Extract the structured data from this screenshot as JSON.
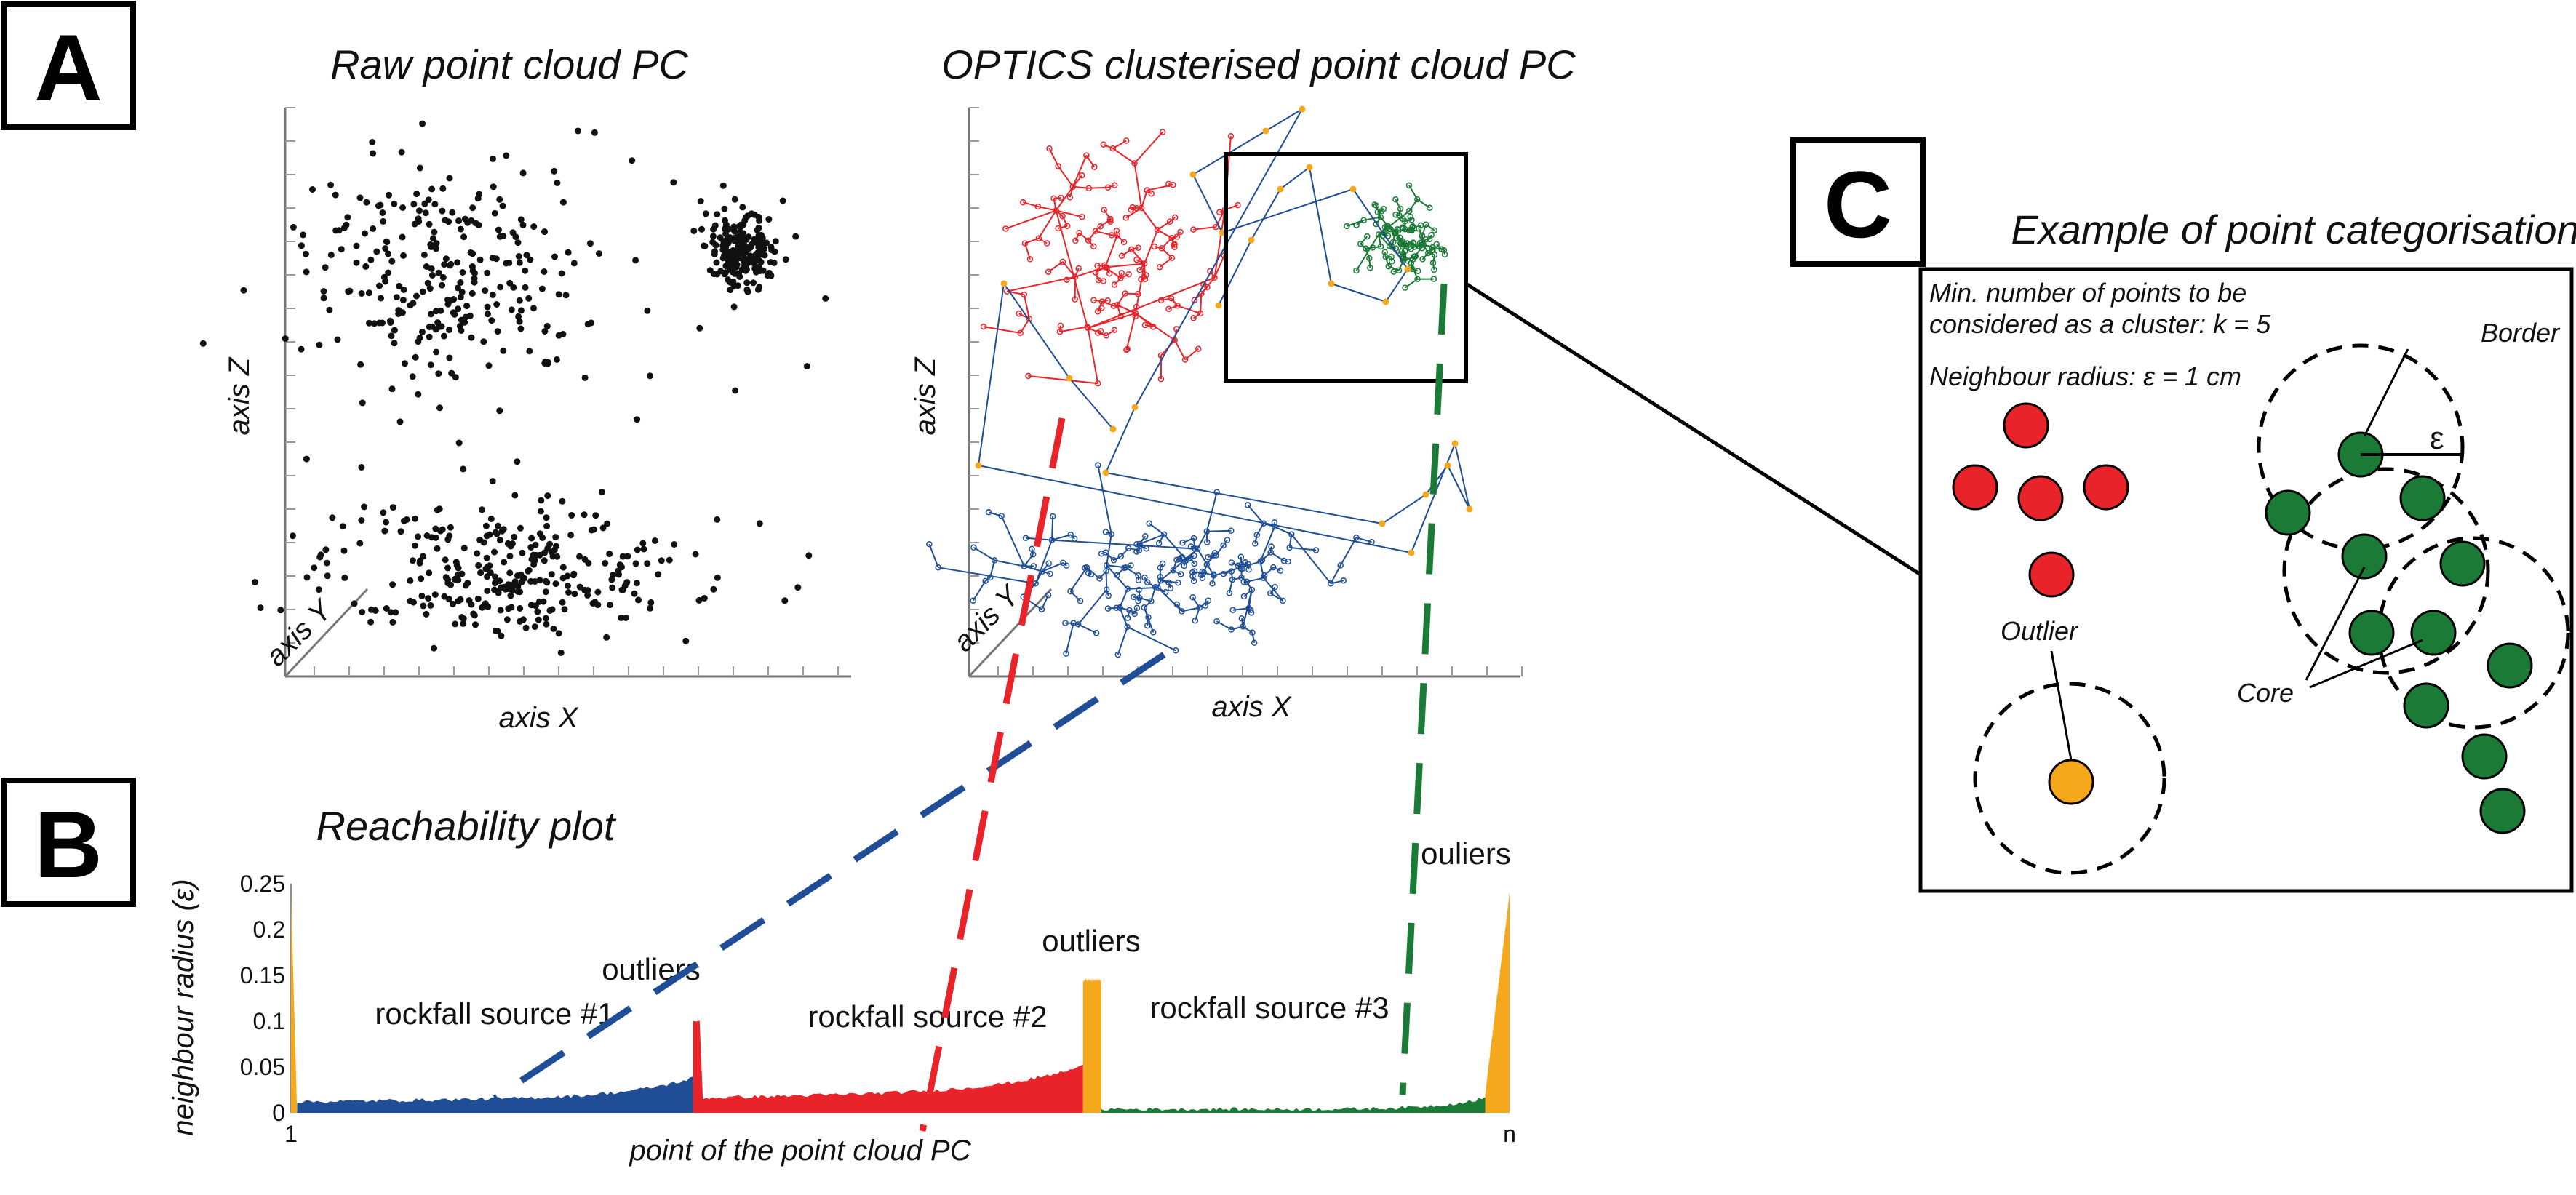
{
  "panels": {
    "A": {
      "letter": "A",
      "raw": {
        "title": "Raw point cloud PC",
        "x_label": "axis X",
        "z_label": "axis Z",
        "y_label": "axis Y"
      },
      "optics": {
        "title": "OPTICS clusterised point cloud PC",
        "x_label": "axis X",
        "z_label": "axis Z",
        "y_label": "axis Y"
      }
    },
    "B": {
      "letter": "B",
      "title": "Reachability plot"
    },
    "C": {
      "letter": "C",
      "title": "Example of point categorisation",
      "line1": "Min. number of points to be",
      "line2": "considered as a cluster: k = 5",
      "line3": "Neighbour radius:  ε = 1 cm",
      "border_label": "Border",
      "epsilon_label": "ε",
      "outlier_label": "Outlier",
      "core_label": "Core"
    }
  },
  "colors": {
    "cluster_1": "#1f4e96",
    "cluster_2": "#e8232a",
    "cluster_3": "#1a7a36",
    "outlier": "#f5a81c",
    "raw_point": "#111111"
  },
  "chart_data": {
    "type": "area",
    "title": "Reachability plot",
    "xlabel": "point of the point cloud PC",
    "ylabel": "neighbour radius (ε)",
    "x_ticks": [
      "1",
      "n"
    ],
    "y_ticks": [
      "0.25",
      "0.2",
      "0.15",
      "0.1",
      "0.05",
      "0"
    ],
    "ylim": [
      0,
      0.25
    ],
    "series": [
      {
        "name": "rockfall source #1",
        "color_key": "cluster_1",
        "x": [
          0.0,
          0.02,
          0.1,
          0.2,
          0.3,
          0.33
        ],
        "y": [
          0.01,
          0.015,
          0.014,
          0.018,
          0.025,
          0.04
        ]
      },
      {
        "name": "rockfall source #2",
        "color_key": "cluster_2",
        "x": [
          0.33,
          0.35,
          0.45,
          0.55,
          0.62,
          0.65
        ],
        "y": [
          0.11,
          0.02,
          0.018,
          0.02,
          0.03,
          0.045
        ]
      },
      {
        "name": "rockfall source #3",
        "color_key": "cluster_3",
        "x": [
          0.67,
          0.7,
          0.8,
          0.9,
          0.97
        ],
        "y": [
          0.005,
          0.003,
          0.004,
          0.006,
          0.015
        ]
      }
    ],
    "annotations": [
      {
        "text": "rockfall source #1",
        "x": 0.12,
        "y": 0.08
      },
      {
        "text": "outliers",
        "x": 0.3,
        "y": 0.13
      },
      {
        "text": "rockfall source #2",
        "x": 0.48,
        "y": 0.08
      },
      {
        "text": "outliers",
        "x": 0.63,
        "y": 0.14
      },
      {
        "text": "rockfall source #3",
        "x": 0.8,
        "y": 0.085
      },
      {
        "text": "ouliers",
        "x": 0.98,
        "y": 0.23
      }
    ]
  }
}
